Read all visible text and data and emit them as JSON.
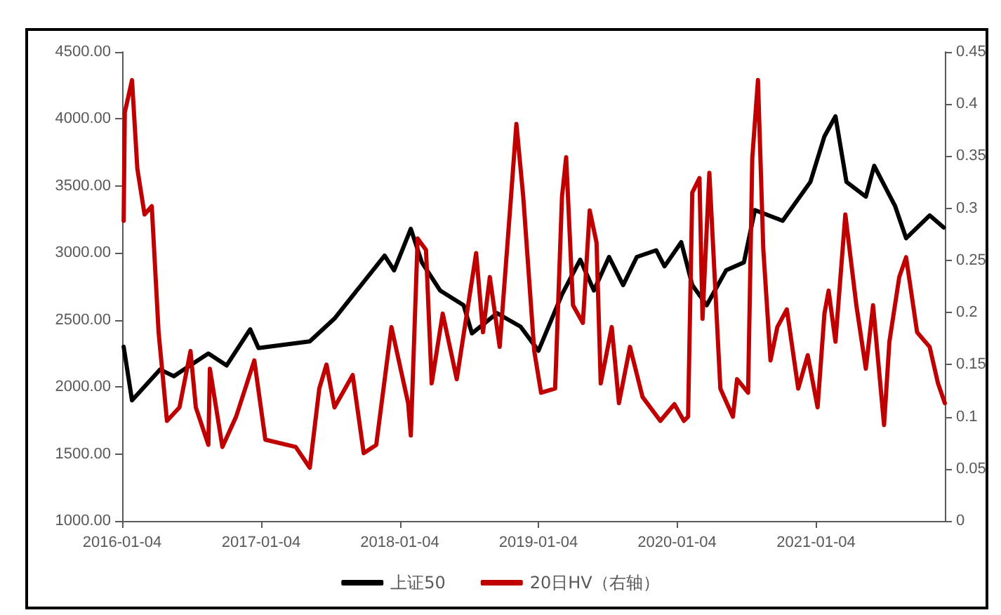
{
  "chart_data": {
    "type": "line",
    "xlim": [
      "2016-01-04",
      "2021-12-09"
    ],
    "xticks": [
      "2016-01-04",
      "2017-01-04",
      "2018-01-04",
      "2019-01-04",
      "2020-01-04",
      "2021-01-04"
    ],
    "ylim": [
      1000,
      4500
    ],
    "yticks": [
      {
        "value": 1000,
        "label": "1000.00"
      },
      {
        "value": 1500,
        "label": "1500.00"
      },
      {
        "value": 2000,
        "label": "2000.00"
      },
      {
        "value": 2500,
        "label": "2500.00"
      },
      {
        "value": 3000,
        "label": "3000.00"
      },
      {
        "value": 3500,
        "label": "3500.00"
      },
      {
        "value": 4000,
        "label": "4000.00"
      },
      {
        "value": 4500,
        "label": "4500.00"
      }
    ],
    "y2lim": [
      0,
      0.45
    ],
    "y2ticks": [
      0,
      0.05,
      0.1,
      0.15,
      0.2,
      0.25,
      0.3,
      0.35,
      0.4,
      0.45
    ],
    "grid": false,
    "legend": "bottom",
    "marker": "none",
    "line_style": "solid",
    "series": [
      {
        "name": "上证50",
        "color": "#000000",
        "x": [
          "2016-01-08",
          "2016-01-30",
          "2016-04-13",
          "2016-05-19",
          "2016-08-18",
          "2016-10-05",
          "2016-12-06",
          "2016-12-28",
          "2017-05-12",
          "2017-07-16",
          "2017-09-13",
          "2017-11-25",
          "2017-12-20",
          "2018-02-02",
          "2018-03-03",
          "2018-04-20",
          "2018-06-21",
          "2018-07-13",
          "2018-09-17",
          "2018-11-18",
          "2019-01-04",
          "2019-03-07",
          "2019-04-24",
          "2019-05-30",
          "2019-07-09",
          "2019-08-15",
          "2019-09-20",
          "2019-11-10",
          "2019-12-02",
          "2020-01-15",
          "2020-02-13",
          "2020-03-22",
          "2020-05-12",
          "2020-06-28",
          "2020-07-27",
          "2020-10-08",
          "2020-12-20",
          "2021-01-26",
          "2021-02-24",
          "2021-03-25",
          "2021-05-15",
          "2021-06-06",
          "2021-07-31",
          "2021-08-29",
          "2021-10-30",
          "2021-12-06"
        ],
        "values": [
          2300,
          1900,
          2130,
          2080,
          2250,
          2160,
          2430,
          2290,
          2340,
          2510,
          2720,
          2980,
          2870,
          3180,
          2930,
          2720,
          2610,
          2400,
          2550,
          2450,
          2270,
          2690,
          2950,
          2720,
          2970,
          2760,
          2970,
          3020,
          2900,
          3080,
          2760,
          2610,
          2870,
          2930,
          3320,
          3240,
          3530,
          3870,
          4020,
          3530,
          3420,
          3650,
          3350,
          3110,
          3280,
          3190
        ]
      },
      {
        "name": "20日HV（右轴）",
        "color": "#c00000",
        "axis": "y2",
        "x": [
          "2016-01-08",
          "2016-01-11",
          "2016-01-30",
          "2016-02-13",
          "2016-03-03",
          "2016-03-22",
          "2016-04-09",
          "2016-05-01",
          "2016-06-03",
          "2016-07-02",
          "2016-07-16",
          "2016-08-18",
          "2016-08-22",
          "2016-09-24",
          "2016-10-30",
          "2016-12-17",
          "2017-01-15",
          "2017-04-05",
          "2017-05-12",
          "2017-06-06",
          "2017-06-25",
          "2017-07-16",
          "2017-09-02",
          "2017-10-01",
          "2017-11-03",
          "2017-12-13",
          "2018-01-26",
          "2018-02-02",
          "2018-02-20",
          "2018-03-14",
          "2018-03-29",
          "2018-04-27",
          "2018-06-03",
          "2018-07-24",
          "2018-08-11",
          "2018-08-29",
          "2018-09-24",
          "2018-10-23",
          "2018-11-07",
          "2018-11-25",
          "2018-12-24",
          "2019-01-11",
          "2019-02-17",
          "2019-03-07",
          "2019-03-18",
          "2019-04-05",
          "2019-05-01",
          "2019-05-19",
          "2019-06-06",
          "2019-06-17",
          "2019-07-16",
          "2019-08-04",
          "2019-09-02",
          "2019-10-05",
          "2019-11-21",
          "2019-12-28",
          "2020-01-22",
          "2020-02-02",
          "2020-02-13",
          "2020-03-03",
          "2020-03-11",
          "2020-03-29",
          "2020-04-27",
          "2020-05-30",
          "2020-06-10",
          "2020-07-09",
          "2020-07-20",
          "2020-08-04",
          "2020-08-18",
          "2020-09-06",
          "2020-09-24",
          "2020-10-19",
          "2020-11-18",
          "2020-12-13",
          "2021-01-08",
          "2021-01-26",
          "2021-02-06",
          "2021-02-24",
          "2021-03-22",
          "2021-04-20",
          "2021-05-15",
          "2021-06-03",
          "2021-07-02",
          "2021-07-16",
          "2021-08-11",
          "2021-08-29",
          "2021-09-27",
          "2021-10-30",
          "2021-11-21",
          "2021-12-09"
        ],
        "values": [
          0.288,
          0.392,
          0.423,
          0.338,
          0.294,
          0.302,
          0.181,
          0.096,
          0.109,
          0.163,
          0.109,
          0.073,
          0.146,
          0.071,
          0.1,
          0.154,
          0.078,
          0.071,
          0.051,
          0.127,
          0.15,
          0.109,
          0.14,
          0.065,
          0.073,
          0.186,
          0.113,
          0.082,
          0.271,
          0.26,
          0.132,
          0.199,
          0.136,
          0.257,
          0.181,
          0.234,
          0.167,
          0.307,
          0.381,
          0.311,
          0.163,
          0.123,
          0.127,
          0.311,
          0.349,
          0.207,
          0.19,
          0.298,
          0.267,
          0.132,
          0.186,
          0.113,
          0.167,
          0.119,
          0.096,
          0.112,
          0.096,
          0.1,
          0.315,
          0.329,
          0.194,
          0.334,
          0.127,
          0.1,
          0.136,
          0.123,
          0.348,
          0.423,
          0.261,
          0.154,
          0.186,
          0.203,
          0.127,
          0.159,
          0.109,
          0.199,
          0.221,
          0.172,
          0.294,
          0.207,
          0.146,
          0.207,
          0.092,
          0.172,
          0.234,
          0.253,
          0.181,
          0.167,
          0.132,
          0.113
        ]
      }
    ]
  }
}
